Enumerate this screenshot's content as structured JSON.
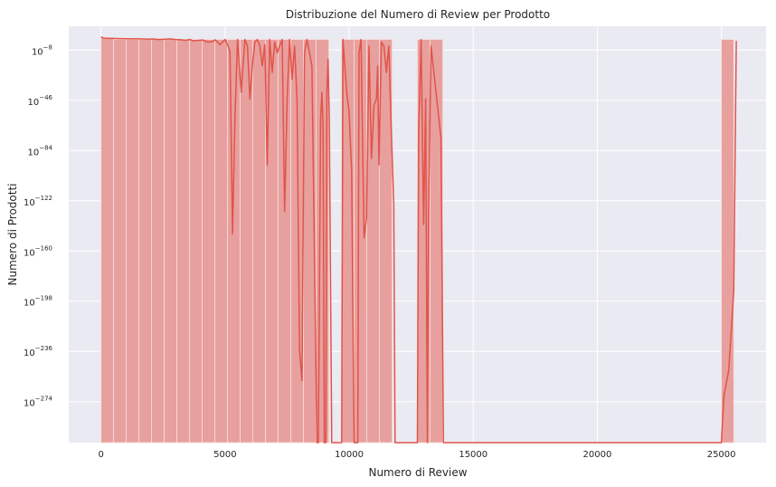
{
  "chart_data": {
    "type": "bar",
    "title": "Distribuzione del Numero di Review per Prodotto",
    "xlabel": "Numero di Review",
    "ylabel": "Numero di Prodotti",
    "y_scale": "log",
    "xlim": [
      -1300,
      26800
    ],
    "ylim_exp": [
      -305,
      10
    ],
    "grid": true,
    "colors": {
      "background": "#eaeaf2",
      "grid": "#ffffff",
      "bar_fill": "#e8a09e",
      "bar_edge": "#f4dcdb",
      "line": "#e0544a"
    },
    "x_ticks": [
      {
        "value": 0,
        "label": "0"
      },
      {
        "value": 5000,
        "label": "5000"
      },
      {
        "value": 10000,
        "label": "10000"
      },
      {
        "value": 15000,
        "label": "15000"
      },
      {
        "value": 20000,
        "label": "20000"
      },
      {
        "value": 25000,
        "label": "25000"
      }
    ],
    "y_ticks": [
      {
        "exp": -8,
        "base": "10",
        "sup": "−8"
      },
      {
        "exp": -46,
        "base": "10",
        "sup": "−46"
      },
      {
        "exp": -84,
        "base": "10",
        "sup": "−84"
      },
      {
        "exp": -122,
        "base": "10",
        "sup": "−122"
      },
      {
        "exp": -160,
        "base": "10",
        "sup": "−160"
      },
      {
        "exp": -198,
        "base": "10",
        "sup": "−198"
      },
      {
        "exp": -236,
        "base": "10",
        "sup": "−236"
      },
      {
        "exp": -274,
        "base": "10",
        "sup": "−274"
      }
    ],
    "bin_width": 510,
    "bars": [
      {
        "x0": 0,
        "x1": 510,
        "log10": 1
      },
      {
        "x0": 510,
        "x1": 1020,
        "log10": 0
      },
      {
        "x0": 1020,
        "x1": 1530,
        "log10": 0
      },
      {
        "x0": 1530,
        "x1": 2040,
        "log10": 0
      },
      {
        "x0": 2040,
        "x1": 2550,
        "log10": 0
      },
      {
        "x0": 2550,
        "x1": 3060,
        "log10": 0
      },
      {
        "x0": 3060,
        "x1": 3570,
        "log10": 0
      },
      {
        "x0": 3570,
        "x1": 4080,
        "log10": 0
      },
      {
        "x0": 4080,
        "x1": 4590,
        "log10": 0
      },
      {
        "x0": 4590,
        "x1": 5100,
        "log10": 0
      },
      {
        "x0": 5100,
        "x1": 5610,
        "log10": 0
      },
      {
        "x0": 5610,
        "x1": 6120,
        "log10": 0
      },
      {
        "x0": 6120,
        "x1": 6630,
        "log10": 0
      },
      {
        "x0": 6630,
        "x1": 7140,
        "log10": 0
      },
      {
        "x0": 7140,
        "x1": 7650,
        "log10": 0
      },
      {
        "x0": 7650,
        "x1": 8160,
        "log10": 0
      },
      {
        "x0": 8160,
        "x1": 8670,
        "log10": 0
      },
      {
        "x0": 8670,
        "x1": 9180,
        "log10": 0
      },
      {
        "x0": 9690,
        "x1": 10200,
        "log10": 0
      },
      {
        "x0": 10200,
        "x1": 10710,
        "log10": 0
      },
      {
        "x0": 10710,
        "x1": 11220,
        "log10": 0
      },
      {
        "x0": 11220,
        "x1": 11730,
        "log10": 0
      },
      {
        "x0": 12750,
        "x1": 13260,
        "log10": 0
      },
      {
        "x0": 13260,
        "x1": 13770,
        "log10": 0
      },
      {
        "x0": 25000,
        "x1": 25500,
        "log10": 0
      }
    ],
    "kde_line": [
      [
        0,
        2
      ],
      [
        100,
        1
      ],
      [
        400,
        0.8
      ],
      [
        700,
        0.7
      ],
      [
        1000,
        0.6
      ],
      [
        1300,
        0.5
      ],
      [
        1600,
        0.5
      ],
      [
        1900,
        0.3
      ],
      [
        2100,
        0.4
      ],
      [
        2300,
        0
      ],
      [
        2600,
        0.2
      ],
      [
        2800,
        0.4
      ],
      [
        3000,
        0
      ],
      [
        3200,
        -0.2
      ],
      [
        3400,
        -0.6
      ],
      [
        3600,
        0
      ],
      [
        3700,
        -1
      ],
      [
        3900,
        -0.7
      ],
      [
        4100,
        -0.4
      ],
      [
        4300,
        -2
      ],
      [
        4500,
        -1.5
      ],
      [
        4600,
        -0.3
      ],
      [
        4700,
        -2
      ],
      [
        4800,
        -4
      ],
      [
        4900,
        -2
      ],
      [
        5000,
        0
      ],
      [
        5100,
        -4
      ],
      [
        5200,
        -9
      ],
      [
        5300,
        -147
      ],
      [
        5400,
        -60
      ],
      [
        5500,
        0
      ],
      [
        5650,
        -40
      ],
      [
        5800,
        0
      ],
      [
        5900,
        -5
      ],
      [
        6000,
        -45
      ],
      [
        6100,
        -20
      ],
      [
        6200,
        -2
      ],
      [
        6300,
        0
      ],
      [
        6400,
        -5
      ],
      [
        6500,
        -20
      ],
      [
        6600,
        -4
      ],
      [
        6700,
        -95
      ],
      [
        6800,
        0
      ],
      [
        6900,
        -25
      ],
      [
        7000,
        -2
      ],
      [
        7100,
        -10
      ],
      [
        7300,
        0
      ],
      [
        7400,
        -130
      ],
      [
        7500,
        -45
      ],
      [
        7600,
        0
      ],
      [
        7700,
        -30
      ],
      [
        7800,
        -5
      ],
      [
        7900,
        -45
      ],
      [
        8000,
        -235
      ],
      [
        8100,
        -258
      ],
      [
        8200,
        -10
      ],
      [
        8300,
        0
      ],
      [
        8500,
        -20
      ],
      [
        8700,
        -305
      ],
      [
        8760,
        -305
      ],
      [
        8850,
        -60
      ],
      [
        8900,
        -40
      ],
      [
        8950,
        -65
      ],
      [
        9000,
        -305
      ],
      [
        9060,
        -305
      ],
      [
        9100,
        -40
      ],
      [
        9150,
        -15
      ],
      [
        9200,
        -60
      ],
      [
        9300,
        -305
      ],
      [
        9700,
        -305
      ],
      [
        9750,
        0
      ],
      [
        9900,
        -40
      ],
      [
        10000,
        -55
      ],
      [
        10100,
        -100
      ],
      [
        10200,
        -305
      ],
      [
        10350,
        -305
      ],
      [
        10400,
        -10
      ],
      [
        10480,
        0
      ],
      [
        10600,
        -150
      ],
      [
        10700,
        -135
      ],
      [
        10800,
        -5
      ],
      [
        10900,
        -90
      ],
      [
        11000,
        -50
      ],
      [
        11100,
        -45
      ],
      [
        11150,
        -20
      ],
      [
        11200,
        -95
      ],
      [
        11300,
        -2
      ],
      [
        11400,
        -5
      ],
      [
        11500,
        -25
      ],
      [
        11600,
        -5
      ],
      [
        11700,
        -70
      ],
      [
        11800,
        -125
      ],
      [
        11850,
        -305
      ],
      [
        12750,
        -305
      ],
      [
        12800,
        -70
      ],
      [
        12900,
        0
      ],
      [
        13000,
        -140
      ],
      [
        13080,
        -45
      ],
      [
        13150,
        -305
      ],
      [
        13200,
        -135
      ],
      [
        13300,
        -5
      ],
      [
        13500,
        -40
      ],
      [
        13700,
        -75
      ],
      [
        13800,
        -305
      ],
      [
        25000,
        -305
      ],
      [
        25100,
        -270
      ],
      [
        25300,
        -250
      ],
      [
        25500,
        -190
      ],
      [
        25600,
        -1
      ]
    ]
  }
}
